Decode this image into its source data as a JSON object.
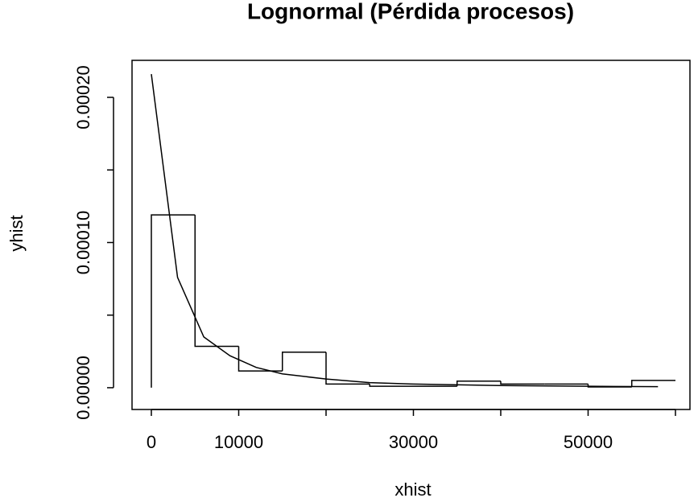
{
  "chart_data": {
    "type": "histogram",
    "title": "Lognormal (Pérdida procesos)",
    "x_label": "xhist",
    "y_label": "yhist",
    "bins": [
      0,
      5000,
      10000,
      15000,
      20000,
      25000,
      30000,
      35000,
      40000,
      45000,
      50000,
      55000,
      60000
    ],
    "values": [
      0.000119,
      2.85e-05,
      1.15e-05,
      2.45e-05,
      2.5e-06,
      1e-06,
      1e-06,
      4.5e-06,
      2.5e-06,
      2.5e-06,
      5e-07,
      5e-06
    ],
    "color": "#000000",
    "density": {
      "x": [
        0,
        3000,
        6000,
        9000,
        12000,
        15000,
        20000,
        25000,
        30000,
        40000,
        50000,
        58000
      ],
      "values": [
        0.000216,
        7.6e-05,
        3.5e-05,
        2.2e-05,
        1.4e-05,
        9.5e-06,
        6e-06,
        3.5e-06,
        2.5e-06,
        1.5e-06,
        1e-06,
        7e-07
      ],
      "color": "#000000"
    },
    "xlim": [
      -2212,
      61660
    ],
    "ylim": [
      -1.5e-05,
      0.0002255
    ],
    "xticks": [
      0,
      10000,
      30000,
      50000
    ],
    "xminor_ticks": [
      20000,
      40000,
      60000
    ],
    "yticks": [
      {
        "value": 0,
        "label": "0.00000"
      },
      {
        "value": 0.0001,
        "label": "0.00010"
      },
      {
        "value": 0.0002,
        "label": "0.00020"
      }
    ],
    "yminor_ticks": [
      5e-05,
      0.00015
    ],
    "grid": false
  }
}
